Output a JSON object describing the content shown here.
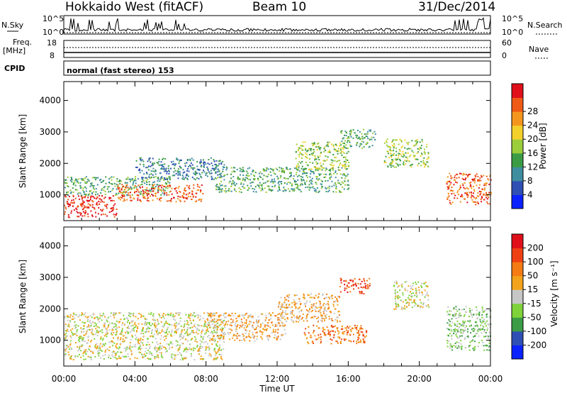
{
  "header": {
    "radar": "Hokkaido West (fitACF)",
    "beam": "Beam 10",
    "date": "31/Dec/2014"
  },
  "top_panels": {
    "nsky_label": "N.Sky",
    "nsky_ticks": [
      "10^5",
      "10^0"
    ],
    "nsearch_label": "N.Search",
    "nsearch_ticks": [
      "10^5",
      "10^0"
    ],
    "freq_label_1": "Freq.",
    "freq_label_2": "[MHz]",
    "freq_ticks": [
      "18",
      "8"
    ],
    "nave_label": "Nave",
    "nave_ticks": [
      "60",
      "0"
    ],
    "cpid_label": "CPID",
    "cpid_text": "normal (fast stereo) 153"
  },
  "x_axis": {
    "label": "Time UT",
    "ticks": [
      "00:00",
      "04:00",
      "08:00",
      "12:00",
      "16:00",
      "20:00",
      "00:00"
    ],
    "range_hours": [
      0,
      24
    ]
  },
  "chart_data": [
    {
      "type": "heatmap",
      "name": "power",
      "ylabel": "Slant Range [km]",
      "ylim": [
        180,
        4600
      ],
      "yticks": [
        1000,
        2000,
        3000,
        4000
      ],
      "xlim_hours": [
        0,
        24
      ],
      "colorbar": {
        "label": "Power [dB]",
        "tick_labels": [
          "4",
          "8",
          "12",
          "16",
          "20",
          "24",
          "28"
        ],
        "colors": [
          "#0b22ff",
          "#2f4fb5",
          "#3e8ea0",
          "#3b9c45",
          "#9ccd3a",
          "#f3d12a",
          "#f4961e",
          "#ef5a16",
          "#e0101b"
        ]
      },
      "regions": [
        {
          "t0": 0.0,
          "t1": 3.0,
          "r0": 300,
          "r1": 1000,
          "level": 8
        },
        {
          "t0": 0.0,
          "t1": 6.0,
          "r0": 1000,
          "r1": 1600,
          "level": 3
        },
        {
          "t0": 3.0,
          "t1": 7.8,
          "r0": 800,
          "r1": 1350,
          "level": 7
        },
        {
          "t0": 4.0,
          "t1": 9.0,
          "r0": 1500,
          "r1": 2200,
          "level": 2
        },
        {
          "t0": 8.5,
          "t1": 16.0,
          "r0": 1100,
          "r1": 1900,
          "level": 3
        },
        {
          "t0": 13.0,
          "t1": 16.0,
          "r0": 1800,
          "r1": 2700,
          "level": 4
        },
        {
          "t0": 15.5,
          "t1": 17.5,
          "r0": 2500,
          "r1": 3100,
          "level": 3
        },
        {
          "t0": 18.0,
          "t1": 20.5,
          "r0": 1900,
          "r1": 2800,
          "level": 4
        },
        {
          "t0": 21.5,
          "t1": 24.0,
          "r0": 700,
          "r1": 1700,
          "level": 7
        }
      ]
    },
    {
      "type": "heatmap",
      "name": "velocity",
      "ylabel": "Slant Range [km]",
      "ylim": [
        180,
        4600
      ],
      "yticks": [
        1000,
        2000,
        3000,
        4000
      ],
      "xlim_hours": [
        0,
        24
      ],
      "colorbar": {
        "label": "Velocity [m s⁻¹]",
        "tick_labels": [
          "200",
          "100",
          "50",
          "15",
          "-15",
          "-50",
          "-100",
          "-200"
        ],
        "colors": [
          "#0b22ff",
          "#2f4fb5",
          "#3b9c45",
          "#7fd23a",
          "#c6c6c6",
          "#f2a31b",
          "#f57b14",
          "#ef4014",
          "#e0101b"
        ]
      },
      "regions": [
        {
          "t0": 0.0,
          "t1": 9.0,
          "r0": 400,
          "r1": 1900,
          "level": 4
        },
        {
          "t0": 8.0,
          "t1": 12.5,
          "r0": 1000,
          "r1": 1900,
          "level": 5
        },
        {
          "t0": 12.0,
          "t1": 15.5,
          "r0": 1600,
          "r1": 2500,
          "level": 5
        },
        {
          "t0": 13.5,
          "t1": 17.0,
          "r0": 900,
          "r1": 1500,
          "level": 6
        },
        {
          "t0": 15.5,
          "t1": 17.2,
          "r0": 2500,
          "r1": 3000,
          "level": 7
        },
        {
          "t0": 18.5,
          "t1": 20.5,
          "r0": 2000,
          "r1": 2900,
          "level": 4
        },
        {
          "t0": 21.5,
          "t1": 24.0,
          "r0": 700,
          "r1": 2100,
          "level": 3
        }
      ]
    }
  ]
}
